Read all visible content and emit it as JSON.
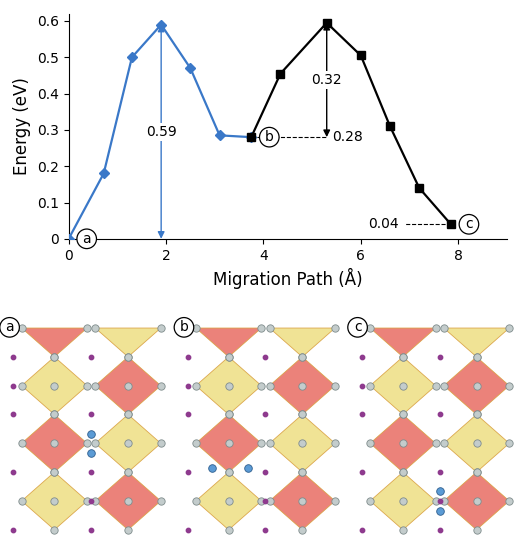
{
  "chart_data": {
    "type": "line",
    "x_label": "Migration Path (Å)",
    "y_label": "Energy (eV)",
    "xlim": [
      0,
      9
    ],
    "xticks": [
      0,
      2,
      4,
      6,
      8
    ],
    "ylim": [
      0,
      0.62
    ],
    "yticks": [
      0,
      0.1,
      0.2,
      0.3,
      0.4,
      0.5,
      0.6
    ],
    "grid": false,
    "series": [
      {
        "color": "#3a78c8",
        "marker": "diamond",
        "line_style": "solid",
        "x": [
          0,
          0.72,
          1.3,
          1.9,
          2.5,
          3.1,
          3.75
        ],
        "values": [
          0,
          0.18,
          0.5,
          0.59,
          0.47,
          0.285,
          0.28
        ]
      },
      {
        "color": "#000000",
        "marker": "square",
        "line_style": "solid",
        "x": [
          3.75,
          4.35,
          5.3,
          6.0,
          6.6,
          7.2,
          7.85
        ],
        "values": [
          0.28,
          0.455,
          0.595,
          0.505,
          0.31,
          0.14,
          0.04
        ]
      }
    ],
    "annotations": [
      {
        "kind": "barrier",
        "text": "0.59",
        "x": 1.9,
        "y": [
          0,
          0.59
        ],
        "color": "#3a78c8"
      },
      {
        "kind": "barrier",
        "text": "0.32",
        "x": 5.3,
        "y": [
          0.28,
          0.595
        ],
        "color": "#000000"
      },
      {
        "kind": "level",
        "text": "0.28",
        "y": 0.28,
        "x": [
          3.75,
          5.3
        ],
        "color": "#000000"
      },
      {
        "kind": "level",
        "text": "0.04",
        "y": 0.04,
        "x": [
          7.85,
          6.9
        ],
        "color": "#000000"
      }
    ],
    "point_labels": [
      {
        "text": "a",
        "x": 0,
        "y": 0
      },
      {
        "text": "b",
        "x": 3.75,
        "y": 0.28
      },
      {
        "text": "c",
        "x": 7.85,
        "y": 0.04
      }
    ]
  },
  "panels": [
    {
      "label": "a"
    },
    {
      "label": "b"
    },
    {
      "label": "c"
    }
  ]
}
